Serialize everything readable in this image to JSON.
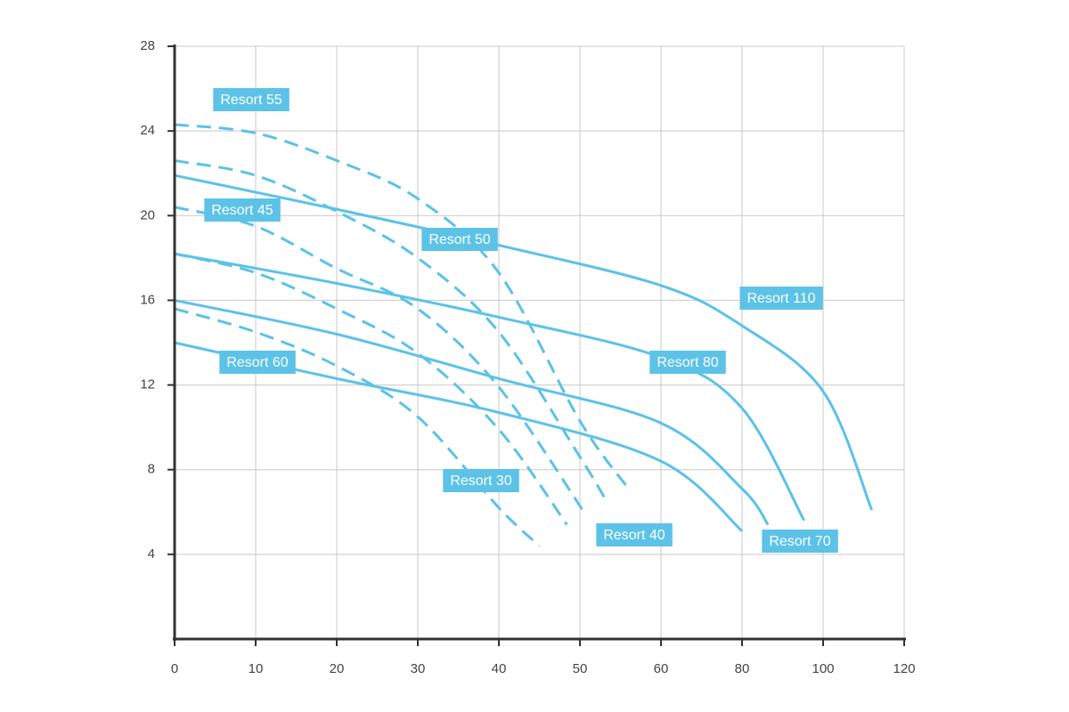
{
  "chart_data": {
    "type": "line",
    "xticks": [
      0,
      10,
      20,
      30,
      40,
      50,
      60,
      80,
      100,
      120
    ],
    "xlim": [
      0,
      120
    ],
    "ylim": [
      0,
      28
    ],
    "yticks": [
      4,
      8,
      12,
      16,
      20,
      24,
      28
    ],
    "grid": true,
    "series": [
      {
        "name": "Resort 110",
        "color": "#5cc2e8",
        "style": "solid",
        "x": [
          0,
          20,
          40,
          60,
          80,
          100,
          112
        ],
        "values": [
          21.9,
          20.3,
          18.6,
          16.7,
          14.8,
          11.7,
          6.1
        ]
      },
      {
        "name": "Resort 80",
        "color": "#5cc2e8",
        "style": "solid",
        "x": [
          0,
          20,
          40,
          60,
          80,
          95.3
        ],
        "values": [
          18.2,
          16.8,
          15.2,
          13.3,
          10.9,
          5.6
        ]
      },
      {
        "name": "Resort 70",
        "color": "#5cc2e8",
        "style": "solid",
        "x": [
          0,
          20,
          40,
          60,
          80,
          86.4
        ],
        "values": [
          16.0,
          14.4,
          12.3,
          10.2,
          7.1,
          5.4
        ]
      },
      {
        "name": "Resort 60",
        "color": "#5cc2e8",
        "style": "solid",
        "x": [
          0,
          20,
          40,
          60,
          80
        ],
        "values": [
          14.0,
          12.3,
          10.7,
          8.4,
          5.1
        ]
      },
      {
        "name": "Resort 55",
        "color": "#5cc2e8",
        "style": "dashed",
        "x": [
          0,
          10,
          20,
          30,
          40,
          50,
          56
        ],
        "values": [
          24.3,
          23.9,
          22.6,
          20.8,
          17.3,
          10.3,
          7.1
        ]
      },
      {
        "name": "Resort 50",
        "color": "#5cc2e8",
        "style": "dashed",
        "x": [
          0,
          10,
          20,
          30,
          40,
          50,
          53
        ],
        "values": [
          22.6,
          21.9,
          20.2,
          18.0,
          14.5,
          8.6,
          6.7
        ]
      },
      {
        "name": "Resort 45",
        "color": "#5cc2e8",
        "style": "dashed",
        "x": [
          0,
          10,
          20,
          30,
          40,
          50.5
        ],
        "values": [
          20.4,
          19.5,
          17.5,
          15.6,
          11.9,
          6.0
        ]
      },
      {
        "name": "Resort 40",
        "color": "#5cc2e8",
        "style": "dashed",
        "x": [
          0,
          10,
          20,
          30,
          40,
          48.4
        ],
        "values": [
          18.2,
          17.3,
          15.6,
          13.5,
          9.9,
          5.4
        ]
      },
      {
        "name": "Resort 30",
        "color": "#5cc2e8",
        "style": "dashed",
        "x": [
          0,
          10,
          20,
          30,
          40,
          45
        ],
        "values": [
          15.6,
          14.5,
          12.9,
          10.5,
          6.2,
          4.4
        ]
      }
    ]
  }
}
